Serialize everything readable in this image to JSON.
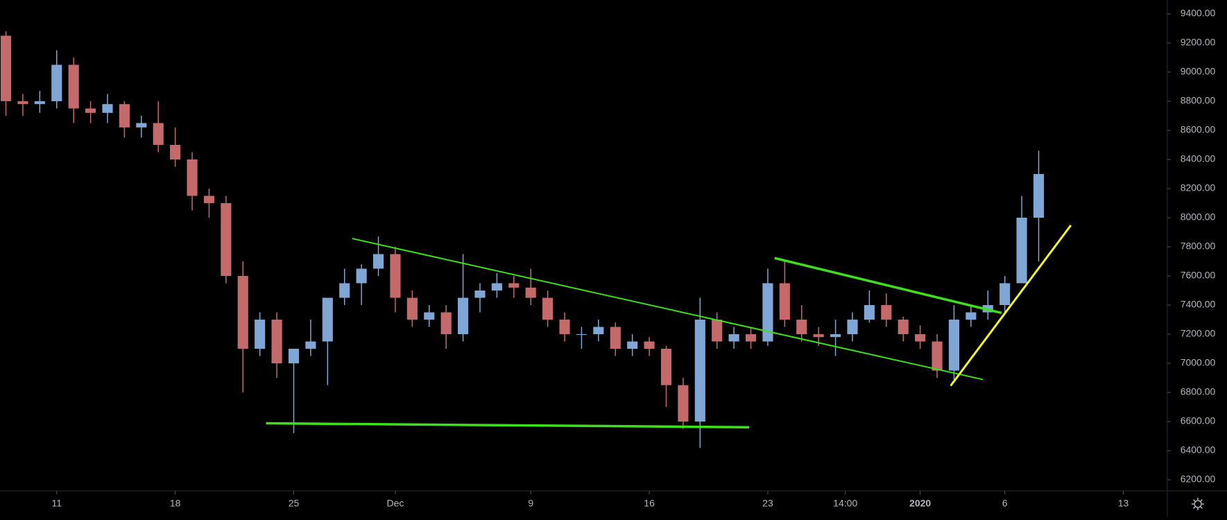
{
  "chart_data": {
    "type": "candlestick",
    "open": [
      9250,
      8800,
      8780,
      8800,
      9050,
      8750,
      8720,
      8780,
      8620,
      8650,
      8500,
      8400,
      8150,
      8100,
      7600,
      7100,
      7300,
      7000,
      7100,
      7150,
      7450,
      7550,
      7650,
      7750,
      7450,
      7300,
      7350,
      7200,
      7450,
      7500,
      7550,
      7520,
      7450,
      7300,
      7200,
      7200,
      7250,
      7100,
      7150,
      7100,
      6850,
      6600,
      7300,
      7150,
      7200,
      7150,
      7550,
      7300,
      7200,
      7180,
      7200,
      7300,
      7400,
      7300,
      7200,
      7150,
      6950,
      7300,
      7350,
      7400,
      7550,
      8000
    ],
    "high": [
      9280,
      8850,
      8870,
      9150,
      9100,
      8800,
      8850,
      8800,
      8700,
      8800,
      8620,
      8450,
      8200,
      8150,
      7700,
      7350,
      7350,
      7100,
      7300,
      7450,
      7650,
      7680,
      7870,
      7800,
      7500,
      7400,
      7400,
      7750,
      7550,
      7620,
      7600,
      7650,
      7500,
      7350,
      7250,
      7300,
      7280,
      7200,
      7180,
      7120,
      6900,
      7450,
      7350,
      7250,
      7250,
      7650,
      7700,
      7400,
      7250,
      7300,
      7350,
      7500,
      7480,
      7320,
      7260,
      7200,
      7400,
      7400,
      7500,
      7600,
      8150,
      8460
    ],
    "low": [
      8700,
      8700,
      8720,
      8750,
      8650,
      8650,
      8650,
      8550,
      8550,
      8450,
      8350,
      8050,
      8000,
      7550,
      6800,
      7050,
      6900,
      6520,
      7050,
      6850,
      7400,
      7400,
      7600,
      7350,
      7250,
      7250,
      7100,
      7150,
      7350,
      7450,
      7450,
      7400,
      7250,
      7150,
      7100,
      7150,
      7050,
      7050,
      7050,
      6700,
      6550,
      6420,
      7100,
      7100,
      7100,
      7120,
      7250,
      7150,
      7120,
      7050,
      7150,
      7280,
      7250,
      7150,
      7100,
      6900,
      6880,
      7250,
      7300,
      7350,
      7550,
      7700
    ],
    "close": [
      8800,
      8780,
      8800,
      9050,
      8750,
      8720,
      8780,
      8620,
      8650,
      8500,
      8400,
      8150,
      8100,
      7600,
      7100,
      7300,
      7000,
      7100,
      7150,
      7450,
      7550,
      7650,
      7750,
      7450,
      7300,
      7350,
      7200,
      7450,
      7500,
      7550,
      7520,
      7450,
      7300,
      7200,
      7200,
      7250,
      7100,
      7150,
      7100,
      6850,
      6600,
      7300,
      7150,
      7200,
      7150,
      7550,
      7300,
      7200,
      7180,
      7200,
      7300,
      7400,
      7300,
      7200,
      7150,
      6950,
      7300,
      7350,
      7400,
      7550,
      8000,
      8300
    ],
    "up_color": "#7fa6d4",
    "down_color": "#c46a6a",
    "xlim": [
      -0.35,
      68.6
    ],
    "xticks": [
      {
        "value": 3,
        "label": "11"
      },
      {
        "value": 10,
        "label": "18"
      },
      {
        "value": 17,
        "label": "25"
      },
      {
        "value": 23,
        "label": "Dec"
      },
      {
        "value": 31,
        "label": "9"
      },
      {
        "value": 38,
        "label": "16"
      },
      {
        "value": 45,
        "label": "23"
      },
      {
        "value": 49.58,
        "label": "14:00"
      },
      {
        "value": 54,
        "label": "2020"
      },
      {
        "value": 59,
        "label": "6"
      },
      {
        "value": 66,
        "label": "13"
      }
    ],
    "ylim": [
      6124,
      9495
    ],
    "yticks": [
      {
        "value": 6200,
        "label": "6200.00"
      },
      {
        "value": 6400,
        "label": "6400.00"
      },
      {
        "value": 6600,
        "label": "6600.00"
      },
      {
        "value": 6800,
        "label": "6800.00"
      },
      {
        "value": 7000,
        "label": "7000.00"
      },
      {
        "value": 7200,
        "label": "7200.00"
      },
      {
        "value": 7400,
        "label": "7400.00"
      },
      {
        "value": 7600,
        "label": "7600.00"
      },
      {
        "value": 7800,
        "label": "7800.00"
      },
      {
        "value": 8000,
        "label": "8000.00"
      },
      {
        "value": 8200,
        "label": "8200.00"
      },
      {
        "value": 8400,
        "label": "8400.00"
      },
      {
        "value": 8600,
        "label": "8600.00"
      },
      {
        "value": 8800,
        "label": "8800.00"
      },
      {
        "value": 9000,
        "label": "9000.00"
      },
      {
        "value": 9200,
        "label": "9200.00"
      },
      {
        "value": 9400,
        "label": "9400.00"
      }
    ],
    "trendlines": [
      {
        "color": "#3ee01e",
        "width": 2,
        "points": [
          [
            20.45,
            7857
          ],
          [
            57.7,
            6889
          ]
        ]
      },
      {
        "color": "#3ee01e",
        "width": 3.5,
        "points": [
          [
            15.36,
            6588
          ],
          [
            43.9,
            6561
          ]
        ]
      },
      {
        "color": "#3ee01e",
        "width": 3.5,
        "points": [
          [
            45.4,
            7723
          ],
          [
            58.8,
            7346
          ]
        ]
      },
      {
        "color": "#f5f52a",
        "width": 3,
        "points": [
          [
            55.8,
            6846
          ],
          [
            62.9,
            7948
          ]
        ]
      }
    ]
  }
}
